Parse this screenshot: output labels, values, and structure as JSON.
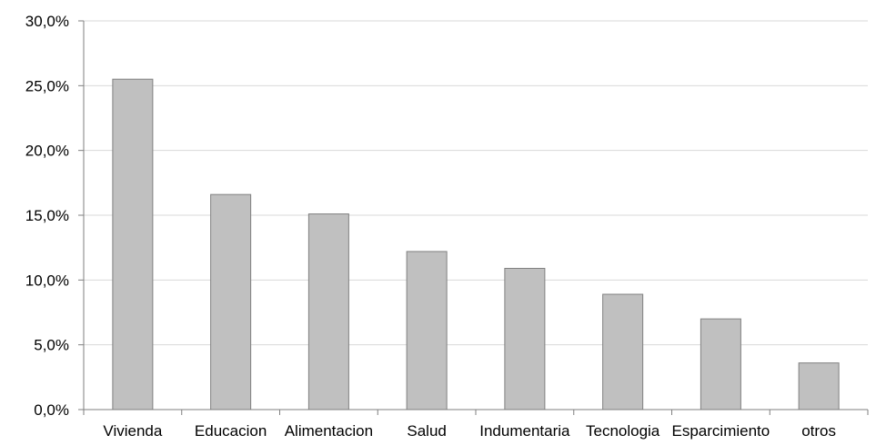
{
  "chart_data": {
    "type": "bar",
    "title": "",
    "xlabel": "",
    "ylabel": "",
    "categories": [
      "Vivienda",
      "Educacion",
      "Alimentacion",
      "Salud",
      "Indumentaria",
      "Tecnologia",
      "Esparcimiento",
      "otros"
    ],
    "values": [
      25.5,
      16.6,
      15.1,
      12.2,
      10.9,
      8.9,
      7.0,
      3.6
    ],
    "ylim": [
      0,
      30
    ],
    "y_ticks": [
      0,
      5,
      10,
      15,
      20,
      25,
      30
    ],
    "y_tick_labels": [
      "0,0%",
      "5,0%",
      "10,0%",
      "15,0%",
      "20,0%",
      "25,0%",
      "30,0%"
    ],
    "grid": true,
    "colors": {
      "bar_fill": "#c0c0c0",
      "bar_stroke": "#808080",
      "grid": "#d9d9d9",
      "axis": "#7f7f7f"
    }
  }
}
